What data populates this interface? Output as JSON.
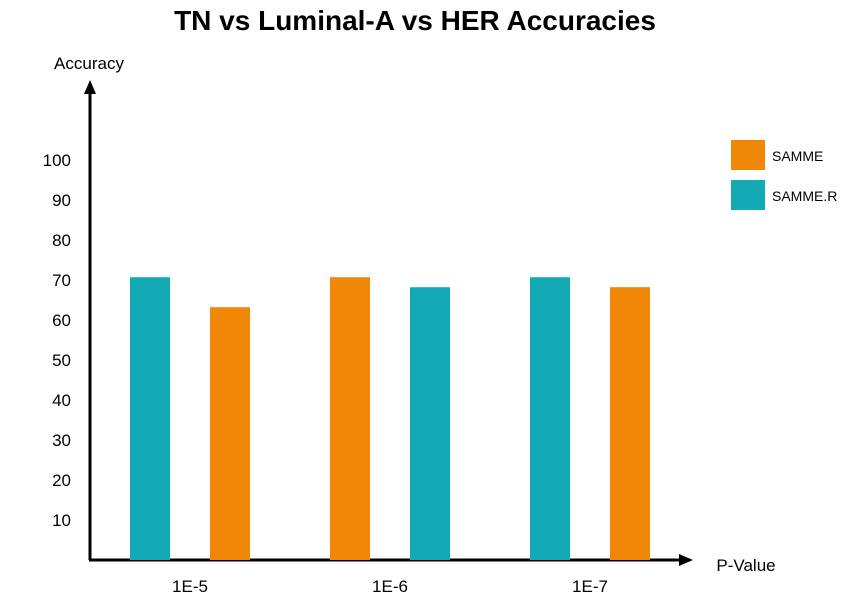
{
  "chart_data": {
    "type": "bar",
    "title": "TN vs Luminal-A vs HER Accuracies",
    "xlabel": "P-Value",
    "ylabel": "Accuracy",
    "categories": [
      "1E-5",
      "1E-6",
      "1E-7"
    ],
    "y_ticks": [
      10,
      20,
      30,
      40,
      50,
      60,
      70,
      80,
      90,
      100
    ],
    "grid": false,
    "legend_position": "top-right",
    "series": [
      {
        "name": "SAMME.R",
        "color": "#13aab5",
        "values": [
          [
            0,
            70.7
          ],
          [
            1,
            68.2
          ],
          [
            2,
            70.7
          ]
        ]
      },
      {
        "name": "SAMME",
        "color": "#f08707",
        "values": [
          [
            0,
            63.2
          ],
          [
            1,
            70.7
          ],
          [
            2,
            68.2
          ]
        ]
      }
    ],
    "bar_order": [
      {
        "series": 0,
        "category": 0
      },
      {
        "series": 1,
        "category": 0
      },
      {
        "series": 1,
        "category": 1
      },
      {
        "series": 0,
        "category": 1
      },
      {
        "series": 0,
        "category": 2
      },
      {
        "series": 1,
        "category": 2
      }
    ],
    "legend_order": [
      1,
      0
    ]
  }
}
